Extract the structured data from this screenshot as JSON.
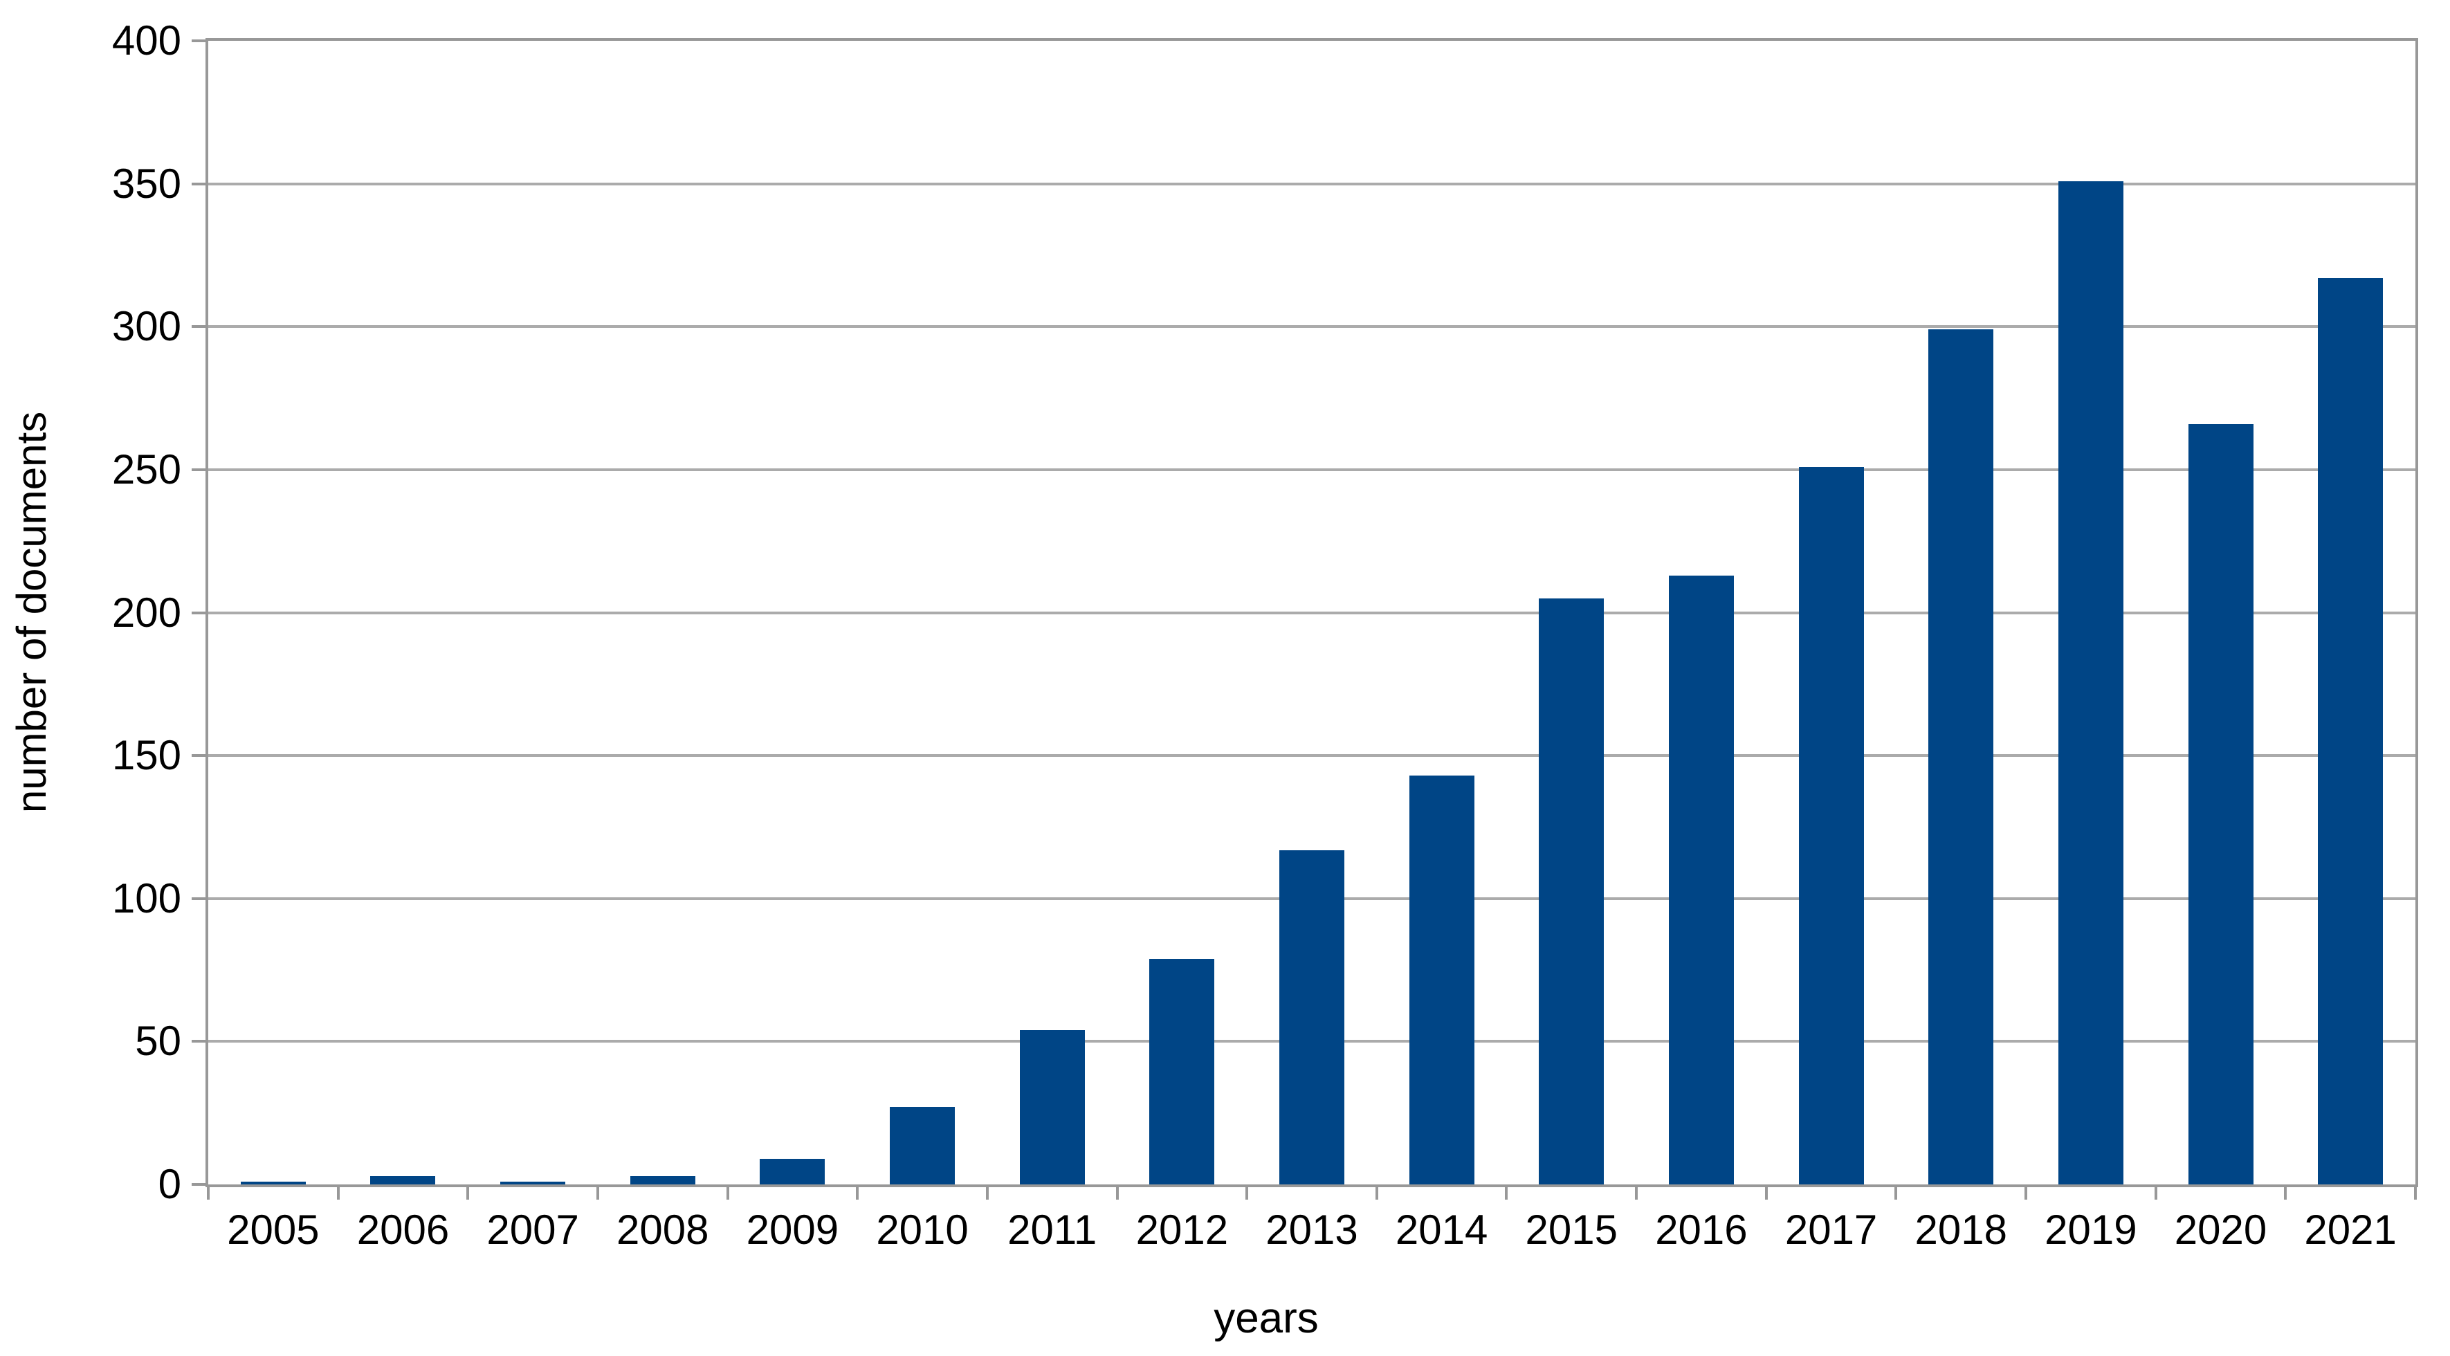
{
  "chart_data": {
    "type": "bar",
    "title": "",
    "xlabel": "years",
    "ylabel": "number of documents",
    "categories": [
      "2005",
      "2006",
      "2007",
      "2008",
      "2009",
      "2010",
      "2011",
      "2012",
      "2013",
      "2014",
      "2015",
      "2016",
      "2017",
      "2018",
      "2019",
      "2020",
      "2021"
    ],
    "values": [
      1,
      3,
      1,
      3,
      9,
      27,
      54,
      79,
      117,
      143,
      205,
      213,
      251,
      299,
      351,
      266,
      317
    ],
    "ylim": [
      0,
      400
    ],
    "ytick_step": 50,
    "yticks": [
      0,
      50,
      100,
      150,
      200,
      250,
      300,
      350,
      400
    ],
    "grid": "horizontal",
    "legend": "none",
    "colors": {
      "bar": "#004586",
      "gridline": "#ababab",
      "axis": "#989898",
      "text": "#000000",
      "background": "#ffffff"
    }
  }
}
